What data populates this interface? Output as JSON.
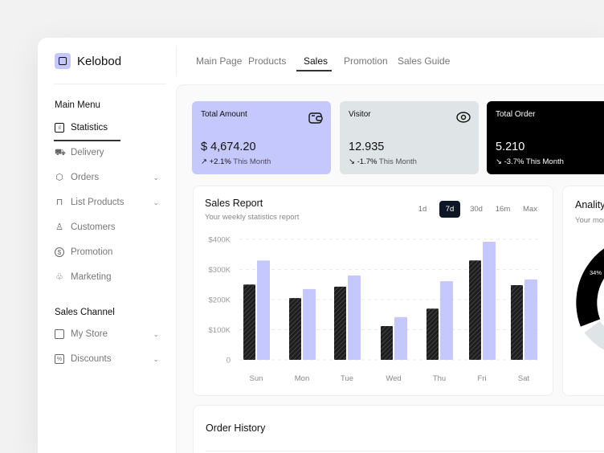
{
  "brand": "Kelobod",
  "nav": [
    "Main Page",
    "Products",
    "Sales",
    "Promotion",
    "Sales Guide"
  ],
  "sidebar": {
    "main_menu": "Main Menu",
    "items": [
      {
        "label": "Statistics",
        "icon": "bar-chart-icon"
      },
      {
        "label": "Delivery",
        "icon": "delivery-icon"
      },
      {
        "label": "Orders",
        "icon": "box-icon"
      },
      {
        "label": "List Products",
        "icon": "bag-icon"
      },
      {
        "label": "Customers",
        "icon": "user-icon"
      },
      {
        "label": "Promotion",
        "icon": "dollar-icon"
      },
      {
        "label": "Marketing",
        "icon": "marketing-icon"
      }
    ],
    "sales_channel": "Sales Channel",
    "channel_items": [
      {
        "label": "My Store",
        "icon": "store-icon"
      },
      {
        "label": "Discounts",
        "icon": "discount-icon"
      }
    ]
  },
  "cards": [
    {
      "title": "Total Amount",
      "value": "$ 4,674.20",
      "change": "+2.1%",
      "period": "This Month",
      "arrow": "↗",
      "bg": "#c5c8fc"
    },
    {
      "title": "Visitor",
      "value": "12.935",
      "change": "-1.7%",
      "period": "This Month",
      "arrow": "↘",
      "bg": "#dfe4e7"
    },
    {
      "title": "Total Order",
      "value": "5.210",
      "change": "-3.7%",
      "period": "This Month",
      "arrow": "↘",
      "bg": "#000000"
    }
  ],
  "sales_report": {
    "title": "Sales Report",
    "subtitle": "Your weekly statistics report",
    "ranges": [
      "1d",
      "7d",
      "30d",
      "16m",
      "Max"
    ],
    "selected": "7d"
  },
  "analytics": {
    "title": "Analitycs",
    "subtitle": "Your monthly report",
    "percent_label": "34%"
  },
  "order_history": {
    "title": "Order History"
  },
  "chart_data": {
    "type": "bar",
    "categories": [
      "Sun",
      "Mon",
      "Tue",
      "Wed",
      "Thu",
      "Fri",
      "Sat"
    ],
    "series": [
      {
        "name": "series-dark",
        "color": "#2a2a2a",
        "values": [
          250,
          205,
          243,
          112,
          170,
          330,
          248
        ]
      },
      {
        "name": "series-purple",
        "color": "#c5c8fc",
        "values": [
          330,
          235,
          280,
          142,
          261,
          392,
          267
        ]
      }
    ],
    "yticks": [
      "0",
      "$100K",
      "$200K",
      "$300K",
      "$400K"
    ],
    "ylim": [
      0,
      400
    ],
    "yunit": "K USD",
    "grid": true
  }
}
